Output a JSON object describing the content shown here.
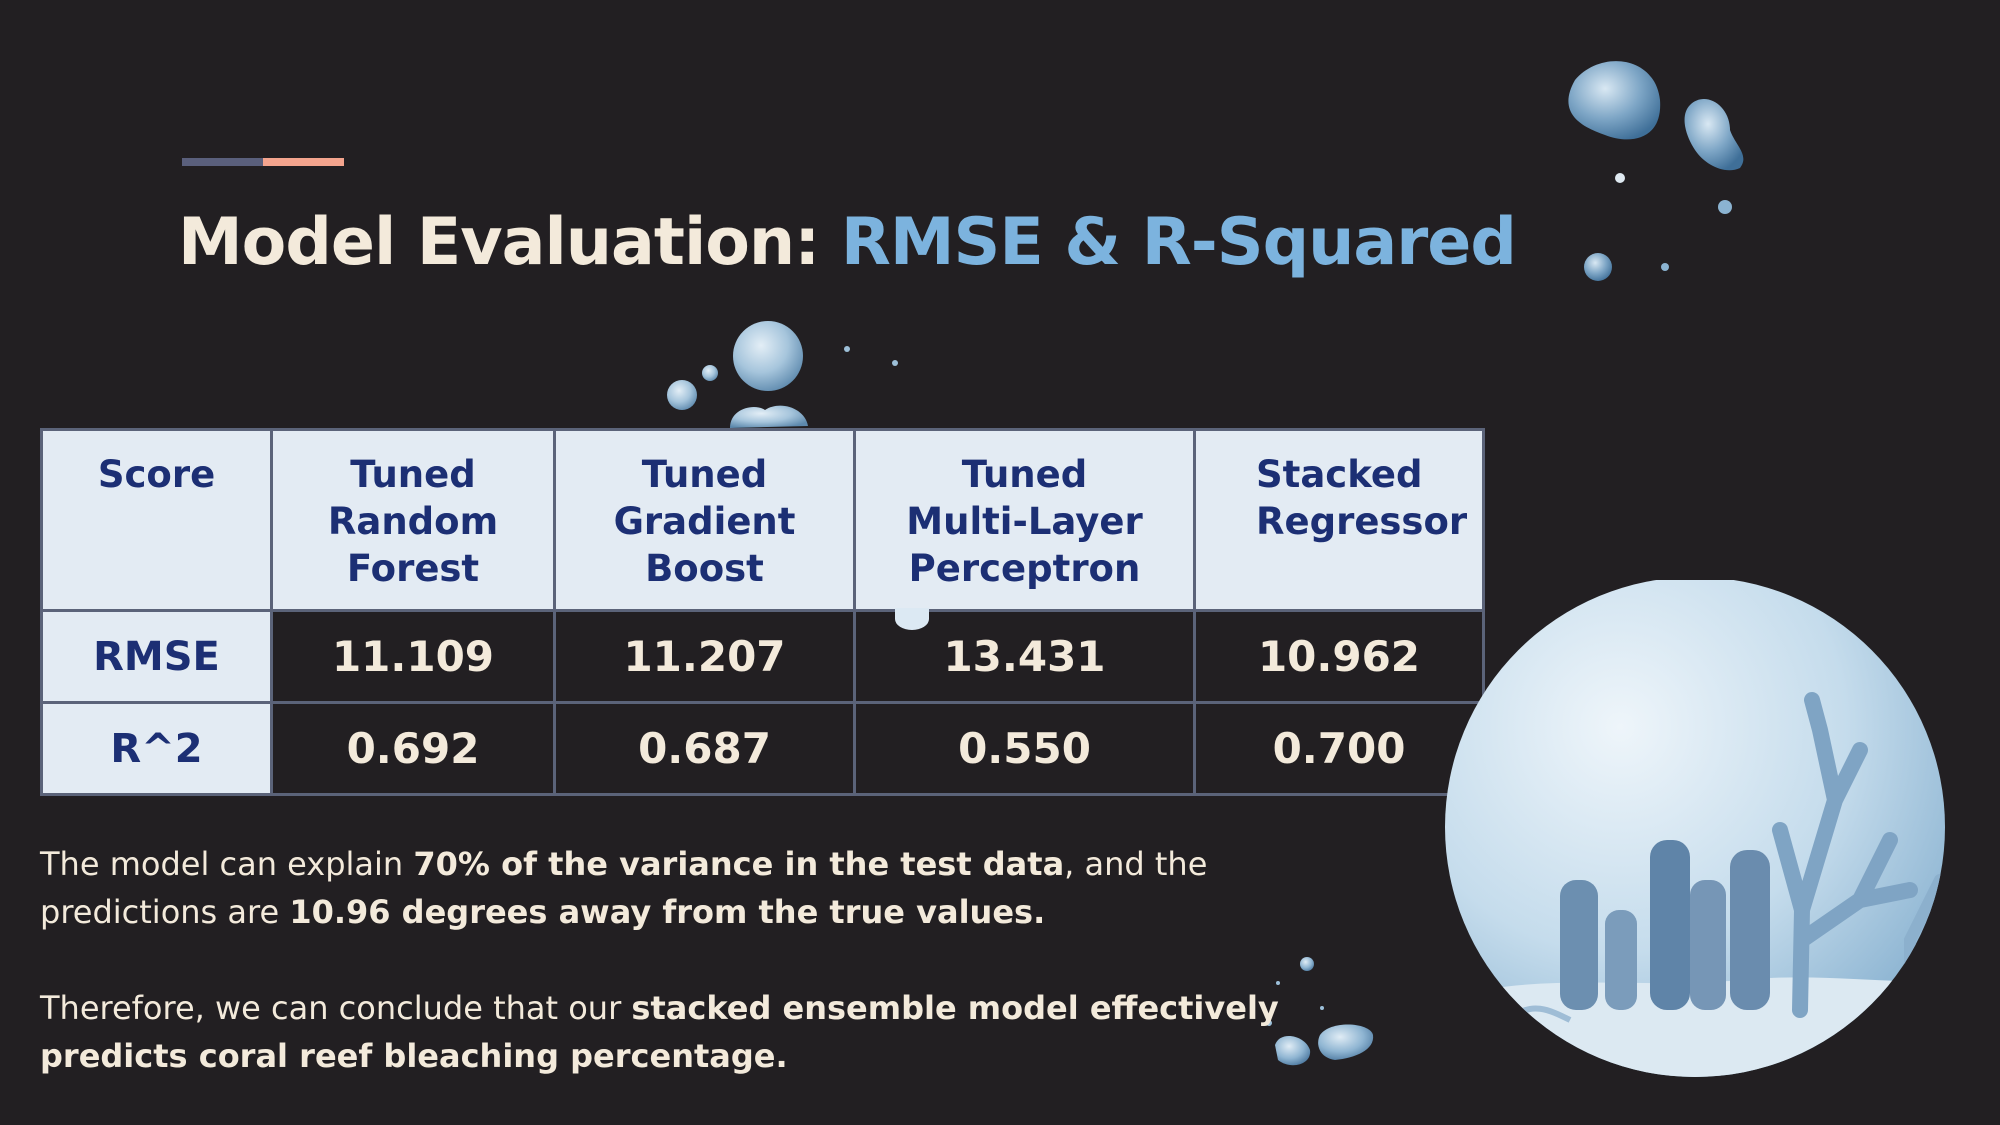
{
  "title": {
    "main": "Model Evaluation: ",
    "highlight": "RMSE & R-Squared"
  },
  "table": {
    "headers": [
      "Score",
      "Tuned Random Forest",
      "Tuned Gradient Boost",
      "Tuned Multi-Layer Perceptron",
      "Stacked Regressor"
    ],
    "rows": [
      {
        "label": "RMSE",
        "values": [
          "11.109",
          "11.207",
          "13.431",
          "10.962"
        ]
      },
      {
        "label": "R^2",
        "values": [
          "0.692",
          "0.687",
          "0.550",
          "0.700"
        ]
      }
    ]
  },
  "paragraph1": {
    "a": "The model can explain ",
    "b": "70% of the variance in the test data",
    "c": ", and the predictions are ",
    "d": "10.96 degrees away from the true values."
  },
  "paragraph2": {
    "a": "Therefore, we can conclude that our ",
    "b": "stacked ensemble model effectively predicts coral reef bleaching percentage."
  },
  "colors": {
    "background": "#221f22",
    "title_text": "#f3eadb",
    "title_highlight": "#7cb3de",
    "header_fill": "#e3ebf3",
    "header_text": "#1c2f74",
    "accent_left": "#5a5f7c",
    "accent_right": "#f4a48e"
  },
  "icons": [
    "water-droplet-icon",
    "coral-reef-bubble-illustration"
  ]
}
